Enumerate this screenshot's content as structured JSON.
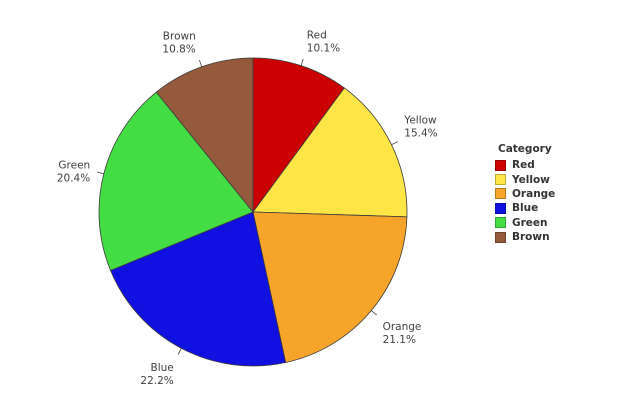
{
  "chart_data": {
    "type": "pie",
    "categories": [
      "Red",
      "Yellow",
      "Orange",
      "Blue",
      "Green",
      "Brown"
    ],
    "values": [
      10.1,
      15.4,
      21.1,
      22.2,
      20.4,
      10.8
    ],
    "value_labels": [
      "10.1%",
      "15.4%",
      "21.1%",
      "22.2%",
      "20.4%",
      "10.8%"
    ],
    "colors": [
      "#cc0000",
      "#ffe545",
      "#f7a52a",
      "#1010e0",
      "#44dd44",
      "#955a3c"
    ],
    "legend_title": "Category",
    "legend_position": "right",
    "start_angle_deg": 0,
    "direction": "clockwise"
  }
}
